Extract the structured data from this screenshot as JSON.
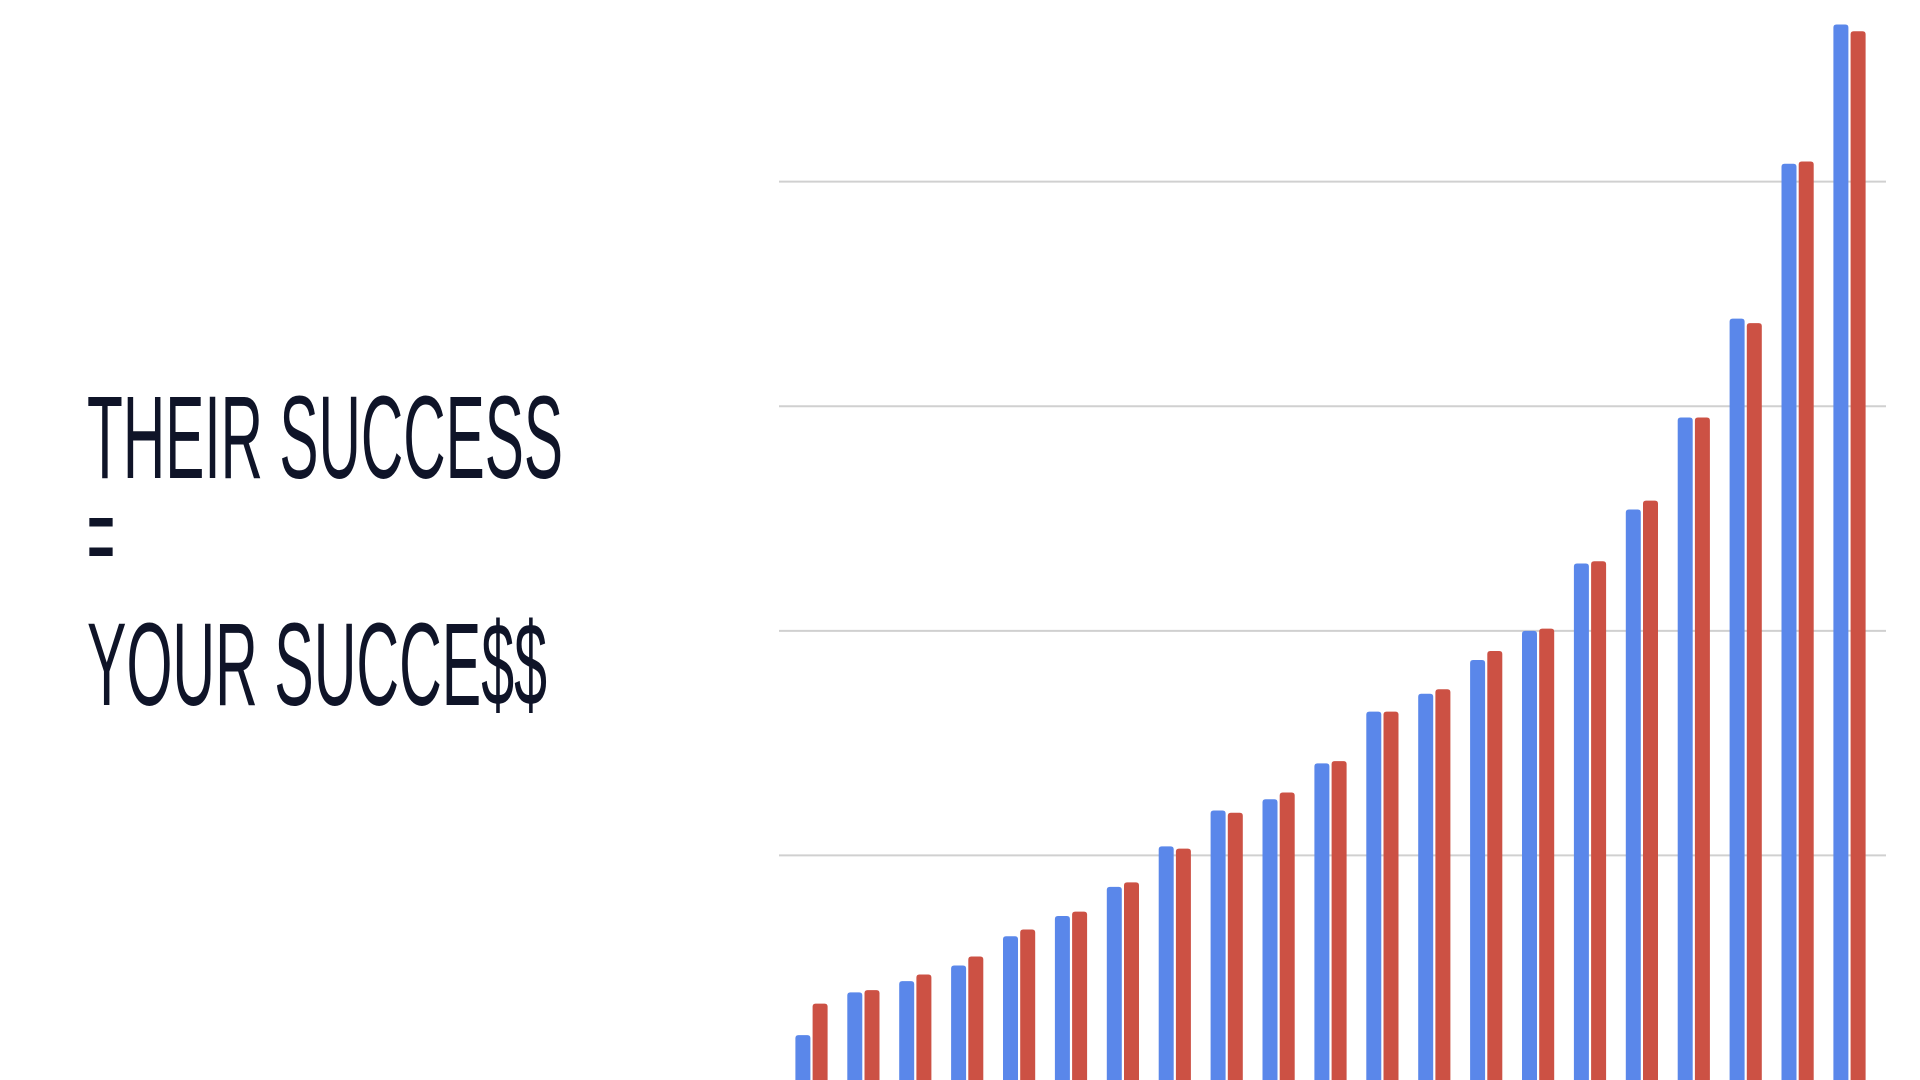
{
  "headline": {
    "lines": [
      "THEIR SUCCESS",
      "=",
      "YOUR SUCCE$$"
    ]
  },
  "chart_data": {
    "type": "bar",
    "categories": [
      null,
      null,
      null,
      null,
      null,
      null,
      null,
      null,
      null,
      null,
      null,
      null,
      null,
      null,
      null,
      null,
      null,
      null,
      null,
      null,
      null
    ],
    "series": [
      {
        "color": "#5a87ea",
        "values": [
          0.2,
          0.39,
          0.44,
          0.51,
          0.64,
          0.73,
          0.86,
          1.04,
          1.2,
          1.25,
          1.41,
          1.64,
          1.72,
          1.87,
          2.0,
          2.3,
          2.54,
          2.95,
          3.39,
          4.08,
          4.7
        ]
      },
      {
        "color": "#cc5144",
        "values": [
          0.34,
          0.4,
          0.47,
          0.55,
          0.67,
          0.75,
          0.88,
          1.03,
          1.19,
          1.28,
          1.42,
          1.64,
          1.74,
          1.91,
          2.01,
          2.31,
          2.58,
          2.95,
          3.37,
          4.09,
          4.67
        ]
      }
    ],
    "ylim": [
      0,
      4.8
    ],
    "yticks": [
      1,
      2,
      3,
      4
    ],
    "grid": true
  }
}
